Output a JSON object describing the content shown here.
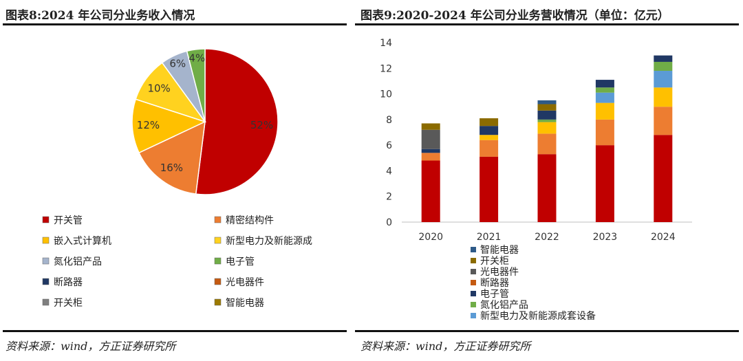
{
  "left": {
    "title": "图表8:2024 年公司分业务收入情况",
    "source": "资料来源：wind，方正证券研究所"
  },
  "right": {
    "title": "图表9:2020-2024 年公司分业务营收情况（单位：亿元）",
    "source": "资料来源：wind，方正证券研究所"
  },
  "colors": {
    "开关管": "#C00000",
    "精密结构件": "#ED7D31",
    "嵌入式计算机": "#FFC000",
    "新型电力及新能源成": "#FFD21F",
    "氮化铝产品": "#A5B4CC",
    "电子管": "#70AD47",
    "断路器": "#203864",
    "光电器件": "#C55A11",
    "开关柜": "#7F7F7F",
    "智能电器": "#9C7A00",
    "智能电器_bar": "#2E5A88",
    "开关柜_bar": "#8B6B00",
    "光电器件_bar": "#595959",
    "断路器_bar": "#C55A11",
    "电子管_bar": "#203864",
    "氮化铝产品_bar": "#70AD47",
    "新型电力及新能源成套设备_bar": "#5B9BD5"
  },
  "chart_data": [
    {
      "type": "pie",
      "slices": [
        {
          "label": "开关管",
          "value": 52,
          "display": "52%"
        },
        {
          "label": "精密结构件",
          "value": 16,
          "display": "16%"
        },
        {
          "label": "嵌入式计算机",
          "value": 12,
          "display": "12%"
        },
        {
          "label": "新型电力及新能源成",
          "value": 10,
          "display": "10%"
        },
        {
          "label": "氮化铝产品",
          "value": 6,
          "display": "6%"
        },
        {
          "label": "电子管",
          "value": 4,
          "display": "4%"
        }
      ],
      "legend": [
        "开关管",
        "精密结构件",
        "嵌入式计算机",
        "新型电力及新能源成",
        "氮化铝产品",
        "电子管",
        "断路器",
        "光电器件",
        "开关柜",
        "智能电器"
      ]
    },
    {
      "type": "bar",
      "stacked": true,
      "categories": [
        "2020",
        "2021",
        "2022",
        "2023",
        "2024"
      ],
      "ylim": [
        0,
        14
      ],
      "yticks": [
        "0",
        "2",
        "4",
        "6",
        "8",
        "10",
        "12",
        "14"
      ],
      "series": [
        {
          "name": "开关管",
          "color": "#C00000",
          "values": [
            4.8,
            5.1,
            5.3,
            6.0,
            6.8
          ]
        },
        {
          "name": "精密结构件",
          "color": "#ED7D31",
          "values": [
            0.6,
            1.3,
            1.6,
            2.0,
            2.2
          ]
        },
        {
          "name": "嵌入式计算机",
          "color": "#FFC000",
          "values": [
            0,
            0.4,
            0.9,
            1.3,
            1.5
          ]
        },
        {
          "name": "新型电力及新能源成套设备",
          "color": "#5B9BD5",
          "values": [
            0,
            0,
            0,
            0.8,
            1.3
          ]
        },
        {
          "name": "氮化铝产品",
          "color": "#70AD47",
          "values": [
            0,
            0,
            0.2,
            0.4,
            0.7
          ]
        },
        {
          "name": "电子管",
          "color": "#203864",
          "values": [
            0.3,
            0.7,
            0.7,
            0.6,
            0.5
          ]
        },
        {
          "name": "光电器件",
          "color": "#595959",
          "values": [
            1.5,
            0,
            0,
            0,
            0
          ]
        },
        {
          "name": "开关柜",
          "color": "#8B6B00",
          "values": [
            0.5,
            0.6,
            0.5,
            0,
            0
          ]
        },
        {
          "name": "智能电器",
          "color": "#2E5A88",
          "values": [
            0,
            0,
            0.3,
            0,
            0
          ]
        }
      ],
      "legend": [
        "智能电器",
        "开关柜",
        "光电器件",
        "断路器",
        "电子管",
        "氮化铝产品",
        "新型电力及新能源成套设备"
      ]
    }
  ]
}
